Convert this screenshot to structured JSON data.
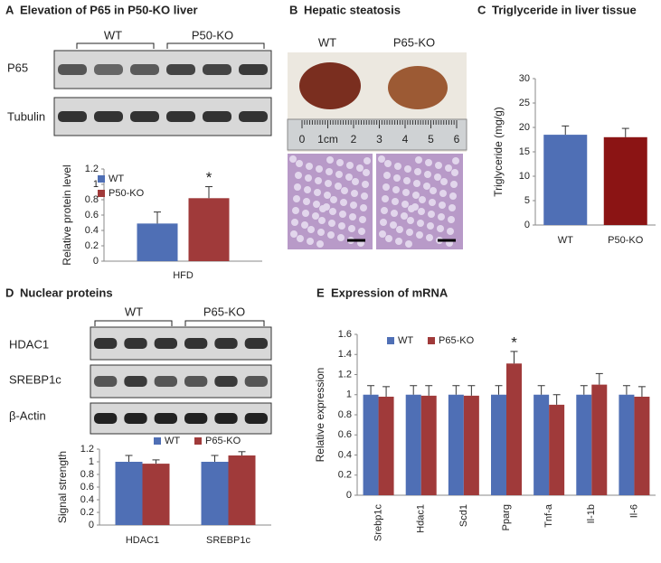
{
  "panels": {
    "A": {
      "letter": "A",
      "title": "Elevation of P65 in P50-KO liver",
      "groups": [
        "WT",
        "P50-KO"
      ],
      "rows": [
        "P65",
        "Tubulin"
      ]
    },
    "B": {
      "letter": "B",
      "title": "Hepatic steatosis",
      "labels": [
        "WT",
        "P65-KO"
      ],
      "ruler": [
        "0",
        "1cm",
        "2",
        "3",
        "4",
        "5",
        "6"
      ]
    },
    "C": {
      "letter": "C",
      "title": "Triglyceride in liver tissue"
    },
    "D": {
      "letter": "D",
      "title": "Nuclear proteins",
      "groups": [
        "WT",
        "P65-KO"
      ],
      "rows": [
        "HDAC1",
        "SREBP1c",
        "β-Actin"
      ]
    },
    "E": {
      "letter": "E",
      "title": "Expression of mRNA"
    }
  },
  "chart_data": [
    {
      "type": "bar",
      "y_label": "Relative protein level",
      "categories": [
        "HFD"
      ],
      "series": [
        {
          "name": "WT",
          "color": "#4f6fb5",
          "values": [
            0.49
          ],
          "errors": [
            0.15
          ],
          "annotations": [
            null
          ]
        },
        {
          "name": "P50-KO",
          "color": "#a03a3a",
          "values": [
            0.82
          ],
          "errors": [
            0.15
          ],
          "annotations": [
            "*"
          ]
        }
      ],
      "ylim": [
        0,
        1.2
      ],
      "yticks": [
        0,
        0.2,
        0.4,
        0.6,
        0.8,
        1,
        1.2
      ],
      "legend": "top-left"
    },
    {
      "type": "bar",
      "y_label": "Triglyceride (mg/g)",
      "categories": [
        "WT",
        "P50-KO"
      ],
      "values": [
        18.5,
        18
      ],
      "errors": [
        1.8,
        1.8
      ],
      "colors": [
        "#4f6fb5",
        "#8b1414"
      ],
      "ylim": [
        0,
        30
      ],
      "yticks": [
        0,
        5,
        10,
        15,
        20,
        25,
        30
      ]
    },
    {
      "type": "bar",
      "y_label": "Signal strength",
      "categories": [
        "HDAC1",
        "SREBP1c"
      ],
      "series": [
        {
          "name": "WT",
          "color": "#4f6fb5",
          "values": [
            1.0,
            1.0
          ],
          "errors": [
            0.1,
            0.1
          ]
        },
        {
          "name": "P65-KO",
          "color": "#a03a3a",
          "values": [
            0.97,
            1.1
          ],
          "errors": [
            0.06,
            0.06
          ]
        }
      ],
      "ylim": [
        0,
        1.2
      ],
      "yticks": [
        0,
        0.2,
        0.4,
        0.6,
        0.8,
        1,
        1.2
      ],
      "legend": "top"
    },
    {
      "type": "bar",
      "y_label": "Relative expression",
      "categories": [
        "Srebp1c",
        "Hdac1",
        "Scd1",
        "Pparg",
        "Tnf-a",
        "Il-1b",
        "Il-6"
      ],
      "series": [
        {
          "name": "WT",
          "color": "#4f6fb5",
          "values": [
            1.0,
            1.0,
            1.0,
            1.0,
            1.0,
            1.0,
            1.0
          ],
          "errors": [
            0.09,
            0.09,
            0.09,
            0.09,
            0.09,
            0.09,
            0.09
          ]
        },
        {
          "name": "P65-KO",
          "color": "#a03a3a",
          "values": [
            0.98,
            0.99,
            0.99,
            1.31,
            0.9,
            1.1,
            0.98
          ],
          "errors": [
            0.1,
            0.1,
            0.1,
            0.12,
            0.1,
            0.11,
            0.1
          ],
          "annotations": [
            null,
            null,
            null,
            "*",
            null,
            null,
            null
          ]
        }
      ],
      "ylim": [
        0,
        1.6
      ],
      "yticks": [
        0,
        0.2,
        0.4,
        0.6,
        0.8,
        1,
        1.2,
        1.4,
        1.6
      ],
      "legend": "top-left"
    }
  ]
}
